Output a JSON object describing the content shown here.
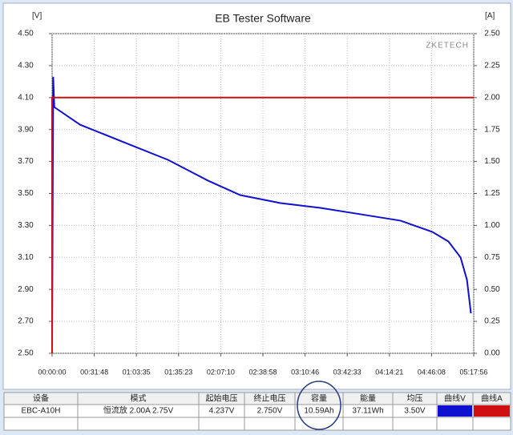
{
  "chart_data": {
    "type": "line",
    "title": "EB Tester Software",
    "y_label": "[V]",
    "y2_label": "[A]",
    "watermark": "ZKETECH",
    "grid": true,
    "xlim": [
      0,
      19076
    ],
    "xticks": [
      {
        "value": 0,
        "label": "00:00:00"
      },
      {
        "value": 1908,
        "label": "00:31:48"
      },
      {
        "value": 3815,
        "label": "01:03:35"
      },
      {
        "value": 5723,
        "label": "01:35:23"
      },
      {
        "value": 7630,
        "label": "02:07:10"
      },
      {
        "value": 9538,
        "label": "02:38:58"
      },
      {
        "value": 11446,
        "label": "03:10:46"
      },
      {
        "value": 13353,
        "label": "03:42:33"
      },
      {
        "value": 15261,
        "label": "04:14:21"
      },
      {
        "value": 17168,
        "label": "04:46:08"
      },
      {
        "value": 19076,
        "label": "05:17:56"
      }
    ],
    "ylim": [
      2.5,
      4.5
    ],
    "yticks": [
      {
        "value": 2.5,
        "label": "2.50"
      },
      {
        "value": 2.7,
        "label": "2.70"
      },
      {
        "value": 2.9,
        "label": "2.90"
      },
      {
        "value": 3.1,
        "label": "3.10"
      },
      {
        "value": 3.3,
        "label": "3.30"
      },
      {
        "value": 3.5,
        "label": "3.50"
      },
      {
        "value": 3.7,
        "label": "3.70"
      },
      {
        "value": 3.9,
        "label": "3.90"
      },
      {
        "value": 4.1,
        "label": "4.10"
      },
      {
        "value": 4.3,
        "label": "4.30"
      },
      {
        "value": 4.5,
        "label": "4.50"
      }
    ],
    "y2lim": [
      0,
      2.5
    ],
    "y2ticks": [
      {
        "value": 0,
        "label": "0.00"
      },
      {
        "value": 0.25,
        "label": "0.25"
      },
      {
        "value": 0.5,
        "label": "0.50"
      },
      {
        "value": 0.75,
        "label": "0.75"
      },
      {
        "value": 1,
        "label": "1.00"
      },
      {
        "value": 1.25,
        "label": "1.25"
      },
      {
        "value": 1.5,
        "label": "1.50"
      },
      {
        "value": 1.75,
        "label": "1.75"
      },
      {
        "value": 2,
        "label": "2.00"
      },
      {
        "value": 2.25,
        "label": "2.25"
      },
      {
        "value": 2.5,
        "label": "2.50"
      }
    ],
    "series": [
      {
        "name": "曲线V",
        "color": "#1010d0",
        "x": [
          0,
          50,
          100,
          1270,
          3440,
          5250,
          7060,
          8510,
          10330,
          12140,
          13950,
          15760,
          17200,
          17930,
          18480,
          18770,
          18950
        ],
        "values": [
          2.5,
          4.23,
          4.04,
          3.93,
          3.81,
          3.71,
          3.58,
          3.49,
          3.44,
          3.41,
          3.37,
          3.33,
          3.26,
          3.2,
          3.1,
          2.96,
          2.75
        ]
      },
      {
        "name": "曲线A",
        "color": "#d01010",
        "axis": "y2",
        "x": [
          0,
          0,
          19076
        ],
        "values": [
          0,
          2,
          2
        ]
      }
    ]
  },
  "table": {
    "header": [
      "设备",
      "模式",
      "起始电压",
      "终止电压",
      "容量",
      "能量",
      "均压",
      "曲线V",
      "曲线A"
    ],
    "rows": [
      [
        "EBC-A10H",
        "恒流放  2.00A  2.75V",
        "4.237V",
        "2.750V",
        "10.59Ah",
        "37.11Wh",
        "3.50V"
      ]
    ]
  }
}
